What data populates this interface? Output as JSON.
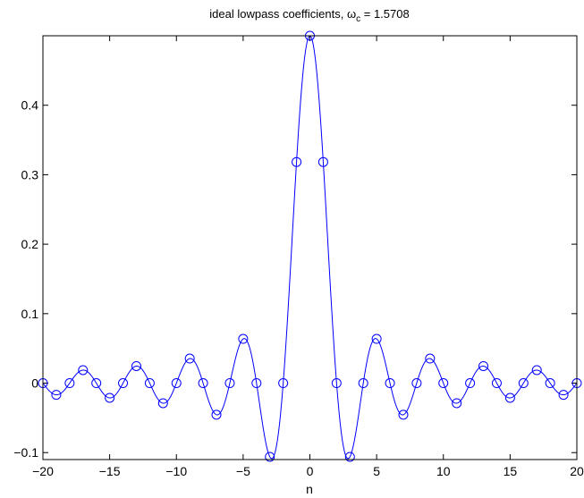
{
  "chart_data": {
    "type": "line",
    "title": {
      "prefix": "ideal lowpass coefficients, ",
      "symbol": "ω",
      "subscript": "c",
      "suffix": " = 1.5708"
    },
    "xlabel": "n",
    "ylabel": "",
    "xlim": [
      -20,
      20
    ],
    "ylim": [
      -0.11,
      0.5
    ],
    "xticks": [
      -20,
      -15,
      -10,
      -5,
      0,
      5,
      10,
      15,
      20
    ],
    "xtick_labels": [
      "−20",
      "−15",
      "−10",
      "−5",
      "0",
      "5",
      "10",
      "15",
      "20"
    ],
    "yticks": [
      -0.1,
      0,
      0.1,
      0.2,
      0.3,
      0.4
    ],
    "ytick_labels": [
      "−0.1",
      "0",
      "0.1",
      "0.2",
      "0.3",
      "0.4"
    ],
    "grid": false,
    "omega_c": 1.5708,
    "series": [
      {
        "style": "curve",
        "color": "#0000ff",
        "x_range": [
          -20,
          20
        ],
        "formula": "sin(omega_c * n) / (pi * n)"
      },
      {
        "style": "markers",
        "marker": "circle",
        "color": "#0000ff",
        "x": [
          -20,
          -19,
          -18,
          -17,
          -16,
          -15,
          -14,
          -13,
          -12,
          -11,
          -10,
          -9,
          -8,
          -7,
          -6,
          -5,
          -4,
          -3,
          -2,
          -1,
          0,
          1,
          2,
          3,
          4,
          5,
          6,
          7,
          8,
          9,
          10,
          11,
          12,
          13,
          14,
          15,
          16,
          17,
          18,
          19,
          20
        ],
        "y": [
          0,
          -0.0168,
          0,
          0.0187,
          0,
          -0.0212,
          0,
          0.0245,
          0,
          -0.0289,
          0,
          0.0354,
          0,
          -0.0455,
          0,
          0.0637,
          0,
          -0.1061,
          0,
          0.3183,
          0.5,
          0.3183,
          0,
          -0.1061,
          0,
          0.0637,
          0,
          -0.0455,
          0,
          0.0354,
          0,
          -0.0289,
          0,
          0.0245,
          0,
          -0.0212,
          0,
          0.0187,
          0,
          -0.0168,
          0
        ]
      }
    ]
  }
}
